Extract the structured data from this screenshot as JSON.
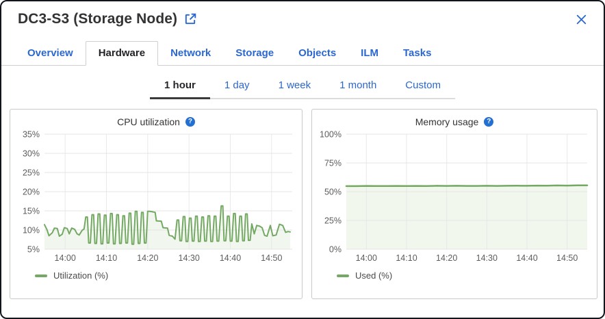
{
  "window": {
    "title": "DC3-S3 (Storage Node)"
  },
  "icons": {
    "external_link": "external-link-icon",
    "close": "close-icon",
    "help": "?"
  },
  "colors": {
    "accent_blue": "#2b67d0",
    "help_blue": "#2470d2",
    "title_text": "#333333",
    "tab_active_text": "#222226",
    "divider": "#cfcfcf",
    "panel_border": "#c9c9c9",
    "time_underline_active": "#3b3b3b",
    "time_underline": "#dcdcdc",
    "grid_line": "#e4e4e4",
    "axis_text": "#5c5c5c",
    "legend_text": "#4a4a4a",
    "series_green": "#74a963",
    "series_fill": "#f1f7ee"
  },
  "tabs": [
    {
      "label": "Overview",
      "active": false
    },
    {
      "label": "Hardware",
      "active": true
    },
    {
      "label": "Network",
      "active": false
    },
    {
      "label": "Storage",
      "active": false
    },
    {
      "label": "Objects",
      "active": false
    },
    {
      "label": "ILM",
      "active": false
    },
    {
      "label": "Tasks",
      "active": false
    }
  ],
  "time_range": {
    "options": [
      {
        "label": "1 hour",
        "active": true
      },
      {
        "label": "1 day",
        "active": false
      },
      {
        "label": "1 week",
        "active": false
      },
      {
        "label": "1 month",
        "active": false
      },
      {
        "label": "Custom",
        "active": false
      }
    ]
  },
  "chart_data": [
    {
      "id": "cpu-utilization",
      "type": "area",
      "title": "CPU utilization",
      "legend": "Utilization (%)",
      "ylabel": "",
      "xlabel": "",
      "ylim": [
        5,
        35
      ],
      "yticks": [
        5,
        10,
        15,
        20,
        25,
        30,
        35
      ],
      "ytick_suffix": "%",
      "x_domain_minutes": [
        0,
        60
      ],
      "x_start_time": "13:55",
      "xticks": [
        {
          "t": 5,
          "label": "14:00"
        },
        {
          "t": 15,
          "label": "14:10"
        },
        {
          "t": 25,
          "label": "14:20"
        },
        {
          "t": 35,
          "label": "14:30"
        },
        {
          "t": 45,
          "label": "14:40"
        },
        {
          "t": 55,
          "label": "14:50"
        }
      ],
      "grid": true,
      "legend_position": "bottom-left",
      "line_color": "#74a963",
      "fill_color": "#f1f7ee",
      "line_width": 2,
      "points": [
        [
          0,
          11.4
        ],
        [
          0.6,
          10.1
        ],
        [
          1.1,
          8.5
        ],
        [
          1.9,
          9.3
        ],
        [
          2.4,
          10.5
        ],
        [
          3.1,
          10.4
        ],
        [
          3.6,
          8.4
        ],
        [
          4.3,
          8.9
        ],
        [
          4.8,
          10.6
        ],
        [
          5.5,
          10.4
        ],
        [
          6.0,
          9.0
        ],
        [
          6.6,
          10.5
        ],
        [
          7.3,
          10.2
        ],
        [
          7.9,
          9.0
        ],
        [
          8.4,
          8.7
        ],
        [
          9.1,
          9.9
        ],
        [
          9.6,
          10.3
        ],
        [
          10.0,
          13.4
        ],
        [
          10.4,
          13.4
        ],
        [
          10.7,
          6.6
        ],
        [
          11.1,
          6.6
        ],
        [
          11.5,
          14.0
        ],
        [
          11.9,
          14.0
        ],
        [
          12.2,
          6.5
        ],
        [
          12.6,
          6.5
        ],
        [
          13.0,
          14.2
        ],
        [
          13.4,
          14.2
        ],
        [
          13.7,
          6.4
        ],
        [
          14.1,
          6.4
        ],
        [
          14.5,
          13.9
        ],
        [
          14.9,
          13.9
        ],
        [
          15.2,
          6.6
        ],
        [
          15.6,
          6.6
        ],
        [
          16.0,
          14.3
        ],
        [
          16.4,
          14.3
        ],
        [
          16.7,
          6.4
        ],
        [
          17.1,
          6.4
        ],
        [
          17.5,
          14.0
        ],
        [
          17.9,
          14.0
        ],
        [
          18.2,
          6.5
        ],
        [
          18.6,
          6.5
        ],
        [
          19.0,
          13.7
        ],
        [
          19.4,
          13.7
        ],
        [
          19.7,
          6.6
        ],
        [
          20.1,
          6.6
        ],
        [
          20.5,
          14.4
        ],
        [
          20.9,
          14.4
        ],
        [
          21.2,
          6.3
        ],
        [
          21.6,
          6.3
        ],
        [
          22.0,
          14.9
        ],
        [
          22.4,
          14.9
        ],
        [
          22.7,
          6.5
        ],
        [
          23.1,
          6.5
        ],
        [
          23.5,
          14.6
        ],
        [
          23.9,
          14.6
        ],
        [
          24.2,
          6.6
        ],
        [
          24.6,
          6.6
        ],
        [
          25.0,
          14.9
        ],
        [
          25.4,
          14.9
        ],
        [
          25.9,
          14.8
        ],
        [
          26.8,
          14.6
        ],
        [
          27.1,
          12.4
        ],
        [
          28.3,
          12.3
        ],
        [
          28.7,
          10.6
        ],
        [
          29.8,
          10.5
        ],
        [
          30.2,
          8.6
        ],
        [
          31.0,
          8.4
        ],
        [
          31.6,
          7.6
        ],
        [
          32.1,
          12.6
        ],
        [
          32.5,
          12.6
        ],
        [
          32.8,
          7.2
        ],
        [
          33.2,
          7.2
        ],
        [
          33.6,
          13.5
        ],
        [
          34.0,
          13.5
        ],
        [
          34.3,
          7.0
        ],
        [
          34.7,
          7.0
        ],
        [
          35.1,
          13.1
        ],
        [
          35.5,
          13.1
        ],
        [
          35.8,
          7.1
        ],
        [
          36.2,
          7.1
        ],
        [
          36.6,
          13.6
        ],
        [
          37.0,
          13.6
        ],
        [
          37.3,
          7.0
        ],
        [
          37.7,
          7.0
        ],
        [
          38.1,
          13.4
        ],
        [
          38.5,
          13.4
        ],
        [
          38.8,
          7.1
        ],
        [
          39.2,
          7.1
        ],
        [
          39.6,
          13.7
        ],
        [
          40.0,
          13.7
        ],
        [
          40.3,
          7.0
        ],
        [
          40.7,
          7.0
        ],
        [
          41.1,
          13.6
        ],
        [
          41.5,
          13.6
        ],
        [
          41.8,
          7.1
        ],
        [
          42.2,
          7.1
        ],
        [
          42.8,
          16.3
        ],
        [
          43.2,
          16.3
        ],
        [
          43.5,
          7.2
        ],
        [
          43.9,
          7.2
        ],
        [
          44.3,
          13.6
        ],
        [
          44.7,
          13.6
        ],
        [
          45.0,
          7.1
        ],
        [
          45.4,
          7.1
        ],
        [
          45.8,
          14.3
        ],
        [
          46.2,
          14.3
        ],
        [
          46.5,
          7.0
        ],
        [
          46.9,
          7.0
        ],
        [
          47.3,
          13.6
        ],
        [
          47.7,
          13.6
        ],
        [
          48.0,
          7.2
        ],
        [
          48.4,
          7.2
        ],
        [
          48.7,
          14.2
        ],
        [
          49.1,
          14.2
        ],
        [
          49.4,
          7.3
        ],
        [
          49.8,
          7.3
        ],
        [
          50.2,
          11.6
        ],
        [
          50.8,
          9.0
        ],
        [
          51.4,
          11.2
        ],
        [
          52.1,
          11.0
        ],
        [
          52.7,
          10.6
        ],
        [
          53.3,
          8.6
        ],
        [
          53.9,
          8.4
        ],
        [
          54.7,
          11.2
        ],
        [
          55.3,
          8.5
        ],
        [
          56.1,
          8.7
        ],
        [
          56.9,
          11.5
        ],
        [
          57.7,
          11.2
        ],
        [
          58.4,
          9.4
        ],
        [
          59.0,
          9.6
        ],
        [
          59.5,
          9.5
        ]
      ]
    },
    {
      "id": "memory-usage",
      "type": "area",
      "title": "Memory usage",
      "legend": "Used (%)",
      "ylabel": "",
      "xlabel": "",
      "ylim": [
        0,
        100
      ],
      "yticks": [
        0,
        25,
        50,
        75,
        100
      ],
      "ytick_suffix": "%",
      "x_domain_minutes": [
        0,
        60
      ],
      "x_start_time": "13:55",
      "xticks": [
        {
          "t": 5,
          "label": "14:00"
        },
        {
          "t": 15,
          "label": "14:10"
        },
        {
          "t": 25,
          "label": "14:20"
        },
        {
          "t": 35,
          "label": "14:30"
        },
        {
          "t": 45,
          "label": "14:40"
        },
        {
          "t": 55,
          "label": "14:50"
        }
      ],
      "grid": true,
      "legend_position": "bottom-left",
      "line_color": "#74a963",
      "fill_color": "#f2f7ee",
      "line_width": 2.5,
      "points": [
        [
          0,
          54.8
        ],
        [
          2.5,
          54.8
        ],
        [
          5,
          55.0
        ],
        [
          7.5,
          54.9
        ],
        [
          10,
          54.9
        ],
        [
          12.5,
          55.0
        ],
        [
          15,
          54.9
        ],
        [
          17.5,
          55.0
        ],
        [
          20,
          54.9
        ],
        [
          22.5,
          55.1
        ],
        [
          25,
          55.0
        ],
        [
          27.5,
          55.1
        ],
        [
          30,
          55.0
        ],
        [
          32.5,
          55.0
        ],
        [
          35,
          55.1
        ],
        [
          37.5,
          55.0
        ],
        [
          40,
          55.1
        ],
        [
          42.5,
          55.2
        ],
        [
          45,
          55.1
        ],
        [
          47.5,
          55.3
        ],
        [
          50,
          55.2
        ],
        [
          52.5,
          55.4
        ],
        [
          55,
          55.3
        ],
        [
          57.5,
          55.5
        ],
        [
          60,
          55.5
        ]
      ]
    }
  ]
}
